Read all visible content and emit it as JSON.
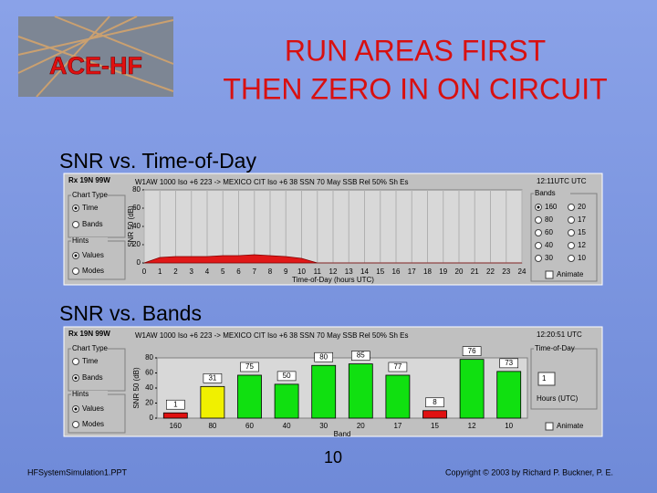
{
  "logo": "ACE-HF",
  "title": [
    "RUN AREAS FIRST",
    "THEN ZERO IN ON CIRCUIT"
  ],
  "sections": [
    {
      "heading": "SNR vs. Time-of-Day",
      "window": {
        "location": "Rx 19N 99W",
        "circuit": "W1AW 1000 Iso +6 223 -> MEXICO CIT Iso +6 38 SSN 70 May SSB Rel 50% Sh Es",
        "clock": "12:11UTC  UTC",
        "chart_type": {
          "title": "Chart Type",
          "options": [
            "Time",
            "Bands"
          ],
          "selected": 0
        },
        "hints": {
          "title": "Hints",
          "options": [
            "Values",
            "Modes"
          ],
          "selected": 0
        },
        "chart": {
          "type": "area",
          "ylabel": "SNR 50 (dB)",
          "xlabel": "Time-of-Day (hours UTC)",
          "x": [
            0,
            1,
            2,
            3,
            4,
            5,
            6,
            7,
            8,
            9,
            10,
            11,
            12,
            13,
            14,
            15,
            16,
            17,
            18,
            19,
            20,
            21,
            22,
            23,
            24
          ],
          "values": [
            0,
            6,
            7,
            7,
            7,
            8,
            8,
            9,
            8,
            7,
            5,
            0,
            0,
            0,
            0,
            0,
            0,
            0,
            0,
            0,
            0,
            0,
            0,
            0,
            0
          ],
          "color": "#e01818",
          "xlim": [
            0,
            24
          ],
          "xticks": [
            0,
            1,
            2,
            3,
            4,
            5,
            6,
            7,
            8,
            9,
            10,
            11,
            12,
            13,
            14,
            15,
            16,
            17,
            18,
            19,
            20,
            21,
            22,
            23,
            24
          ],
          "ylim": [
            0,
            80
          ],
          "yticks": [
            0,
            20,
            40,
            60,
            80
          ],
          "grid": true
        },
        "bands": {
          "title": "Bands",
          "options": [
            "160",
            "20",
            "80",
            "17",
            "60",
            "15",
            "40",
            "12",
            "30",
            "10"
          ],
          "selected": 0
        },
        "animate": "Animate"
      }
    },
    {
      "heading": "SNR vs. Bands",
      "window": {
        "location": "Rx 19N 99W",
        "circuit": "W1AW 1000 Iso +6 223 -> MEXICO CIT Iso +6 38 SSN 70 May SSB Rel 50% Sh Es",
        "clock": "12:20:51  UTC",
        "chart_type": {
          "title": "Chart Type",
          "options": [
            "Time",
            "Bands"
          ],
          "selected": 1
        },
        "hints": {
          "title": "Hints",
          "options": [
            "Values",
            "Modes"
          ],
          "selected": 0
        },
        "chart": {
          "type": "bar",
          "ylabel": "SNR 50 (dB)",
          "xlabel": "Band",
          "categories": [
            "160",
            "80",
            "60",
            "40",
            "30",
            "20",
            "17",
            "15",
            "12",
            "10"
          ],
          "values": [
            7,
            42,
            57,
            45,
            70,
            72,
            57,
            10,
            78,
            62
          ],
          "reliability": [
            1,
            31,
            75,
            50,
            80,
            85,
            77,
            8,
            76,
            73
          ],
          "colors": [
            "#e01010",
            "#f0f000",
            "#10e010",
            "#10e010",
            "#10e010",
            "#10e010",
            "#10e010",
            "#e01010",
            "#10e010",
            "#10e010"
          ],
          "ylim": [
            0,
            80
          ],
          "yticks": [
            0,
            20,
            40,
            60,
            80
          ]
        },
        "time": {
          "title": "Time-of-Day",
          "hour": 1,
          "unit": "Hours (UTC)"
        },
        "animate": "Animate"
      }
    }
  ],
  "footer": {
    "file": "HFSystemSimulation1.PPT",
    "page": 10,
    "copyright": "Copyright © 2003 by Richard P. Buckner, P. E."
  }
}
